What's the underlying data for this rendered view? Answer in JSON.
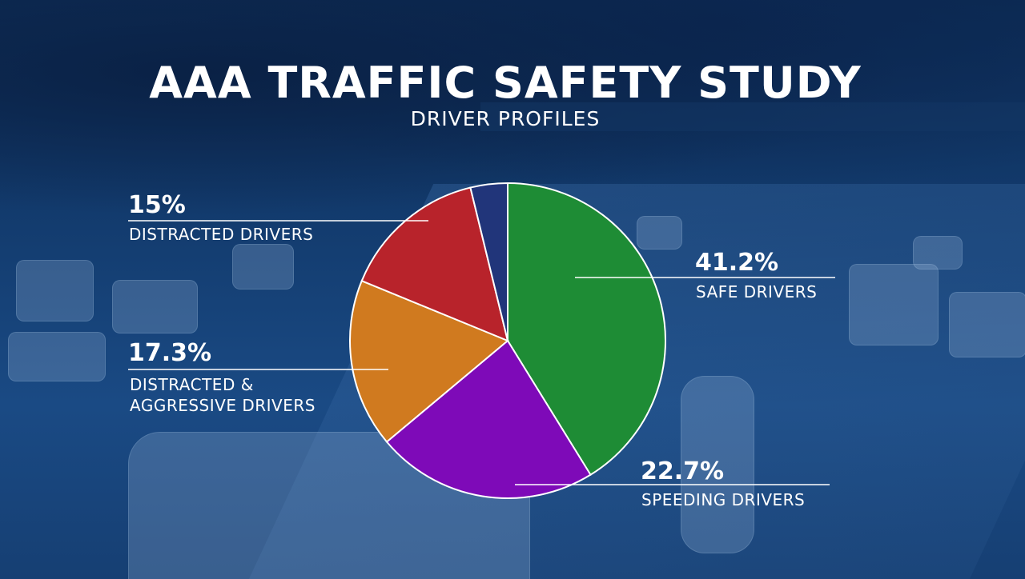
{
  "header": {
    "title": "AAA TRAFFIC SAFETY STUDY",
    "subtitle": "DRIVER PROFILES"
  },
  "labels": {
    "safe": {
      "pct": "41.2%",
      "name": "SAFE DRIVERS"
    },
    "speeding": {
      "pct": "22.7%",
      "name": "SPEEDING DRIVERS"
    },
    "distracted_aggressive": {
      "pct": "17.3%",
      "name_line1": "DISTRACTED &",
      "name_line2": "AGGRESSIVE DRIVERS"
    },
    "distracted": {
      "pct": "15%",
      "name": "DISTRACTED DRIVERS"
    }
  },
  "chart_data": {
    "type": "pie",
    "title": "AAA TRAFFIC SAFETY STUDY",
    "subtitle": "DRIVER PROFILES",
    "slices": [
      {
        "label": "SAFE DRIVERS",
        "value": 41.2,
        "color": "#1e8c35"
      },
      {
        "label": "SPEEDING DRIVERS",
        "value": 22.7,
        "color": "#7e0ab8"
      },
      {
        "label": "DISTRACTED & AGGRESSIVE DRIVERS",
        "value": 17.3,
        "color": "#d07a1f"
      },
      {
        "label": "DISTRACTED DRIVERS",
        "value": 15,
        "color": "#b8232b"
      },
      {
        "label": "",
        "value": 3.8,
        "color": "#21357a"
      }
    ],
    "start_angle": "top",
    "direction": "clockwise",
    "slice_border_color": "#ffffff",
    "leader_line_color": "#ffffff"
  }
}
